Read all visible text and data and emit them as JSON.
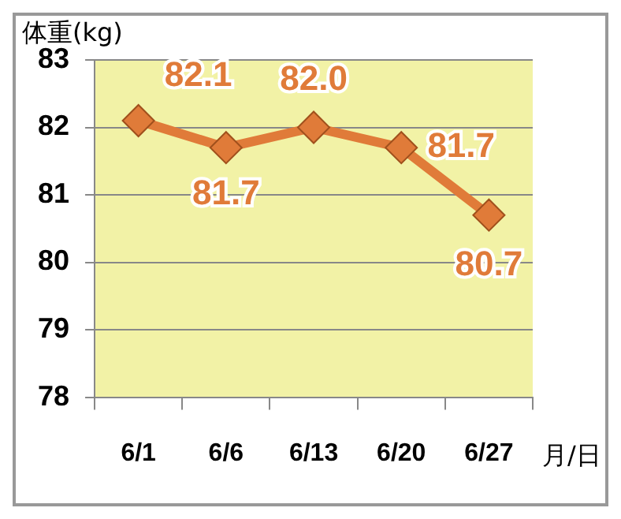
{
  "chart_data": {
    "type": "line",
    "ylabel": "体重(kg)",
    "xlabel": "月/日",
    "categories": [
      "6/1",
      "6/6",
      "6/13",
      "6/20",
      "6/27"
    ],
    "series": [
      {
        "color": "#e07b39",
        "values": [
          82.1,
          81.7,
          82.0,
          81.7,
          80.7
        ]
      }
    ],
    "ylim": [
      78,
      83
    ],
    "yticks": [
      78,
      79,
      80,
      81,
      82,
      83
    ],
    "grid": "y",
    "legend": false,
    "marker": "diamond",
    "line_style": "solid",
    "value_labels": [
      "82.1",
      "81.7",
      "82.0",
      "81.7",
      "80.7"
    ]
  }
}
